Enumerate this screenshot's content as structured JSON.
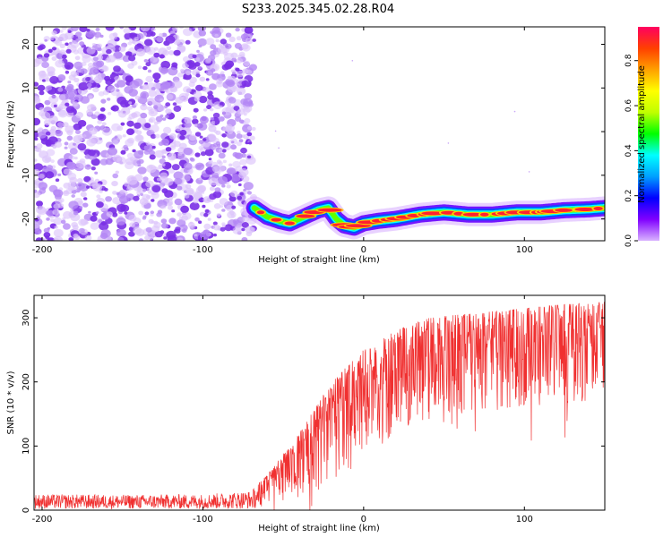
{
  "figure_title": "S233.2025.345.02.28.R04",
  "chart_data": [
    {
      "type": "heatmap",
      "title": "S233.2025.345.02.28.R04",
      "xlabel": "Height of straight line (km)",
      "ylabel": "Frequency (Hz)",
      "xlim": [
        -205,
        150
      ],
      "ylim": [
        -25,
        24
      ],
      "xticks": [
        -200,
        -100,
        0,
        100
      ],
      "yticks": [
        -20,
        -10,
        0,
        10,
        20
      ],
      "grid": false,
      "colorbar": {
        "label": "Normalized spectral amplitude",
        "range": [
          0.0,
          0.95
        ],
        "ticks": [
          0.0,
          0.2,
          0.4,
          0.6,
          0.8
        ],
        "colormap": [
          "#d9b3ff",
          "#8000ff",
          "#0000ff",
          "#00a0ff",
          "#00ffff",
          "#00ff00",
          "#c0ff00",
          "#ffff00",
          "#ffa000",
          "#ff4000",
          "#ff0060"
        ]
      },
      "noise_region_x": [
        -205,
        -68
      ],
      "noise_level_range": [
        0.0,
        0.12
      ],
      "signal_ridge": {
        "x": [
          -68,
          -60,
          -52,
          -46,
          -40,
          -34,
          -28,
          -22,
          -17,
          -12,
          -6,
          0,
          8,
          20,
          35,
          50,
          65,
          80,
          95,
          110,
          125,
          140,
          150
        ],
        "frequency": [
          -17.5,
          -19.5,
          -20.5,
          -21.0,
          -20.0,
          -19.0,
          -18.0,
          -17.5,
          -20.0,
          -21.5,
          -22.0,
          -21.0,
          -20.5,
          -20.0,
          -19.0,
          -18.5,
          -19.0,
          -19.0,
          -18.5,
          -18.5,
          -18.0,
          -17.8,
          -17.5
        ],
        "peak_amplitude": 0.9
      }
    },
    {
      "type": "line",
      "xlabel": "Height of straight line (km)",
      "ylabel": "SNR (10 * v/v)",
      "xlim": [
        -205,
        150
      ],
      "ylim": [
        0,
        335
      ],
      "xticks": [
        -200,
        -100,
        0,
        100
      ],
      "yticks": [
        0,
        100,
        200,
        300
      ],
      "grid": false,
      "series": [
        {
          "name": "SNR",
          "color": "#f03030",
          "envelope_x": [
            -205,
            -150,
            -100,
            -70,
            -60,
            -40,
            -20,
            0,
            20,
            40,
            60,
            80,
            100,
            120,
            150
          ],
          "envelope_low": [
            2,
            2,
            2,
            2,
            5,
            15,
            40,
            80,
            120,
            140,
            150,
            155,
            160,
            165,
            170
          ],
          "envelope_high": [
            25,
            24,
            25,
            30,
            55,
            120,
            200,
            250,
            280,
            300,
            305,
            310,
            315,
            320,
            325
          ]
        }
      ]
    }
  ]
}
